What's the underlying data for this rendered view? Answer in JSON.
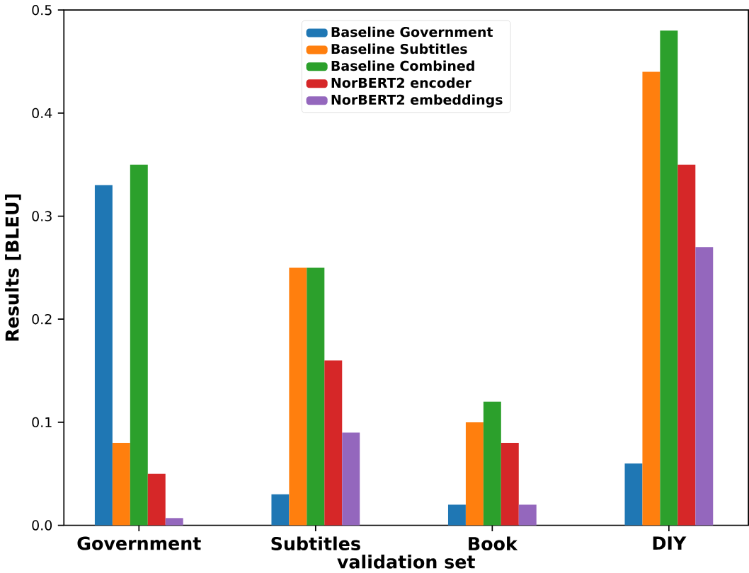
{
  "chart_data": {
    "type": "bar",
    "xlabel": "validation set",
    "ylabel": "Results [BLEU]",
    "categories": [
      "Government",
      "Subtitles",
      "Book",
      "DIY"
    ],
    "series": [
      {
        "name": "Baseline Government",
        "color": "#1f77b4",
        "values": [
          0.33,
          0.03,
          0.02,
          0.06
        ]
      },
      {
        "name": "Baseline Subtitles",
        "color": "#ff7f0e",
        "values": [
          0.08,
          0.25,
          0.1,
          0.44
        ]
      },
      {
        "name": "Baseline Combined",
        "color": "#2ca02c",
        "values": [
          0.35,
          0.25,
          0.12,
          0.48
        ]
      },
      {
        "name": "NorBERT2 encoder",
        "color": "#d62728",
        "values": [
          0.05,
          0.16,
          0.08,
          0.35
        ]
      },
      {
        "name": "NorBERT2 embeddings",
        "color": "#9467bd",
        "values": [
          0.007,
          0.09,
          0.02,
          0.27
        ]
      }
    ],
    "ylim": [
      0,
      0.5
    ],
    "yticks": [
      {
        "value": 0,
        "label": "0.0"
      },
      0.1,
      0.2,
      0.3,
      0.4,
      0.5
    ],
    "grid": false,
    "legend": "top"
  }
}
